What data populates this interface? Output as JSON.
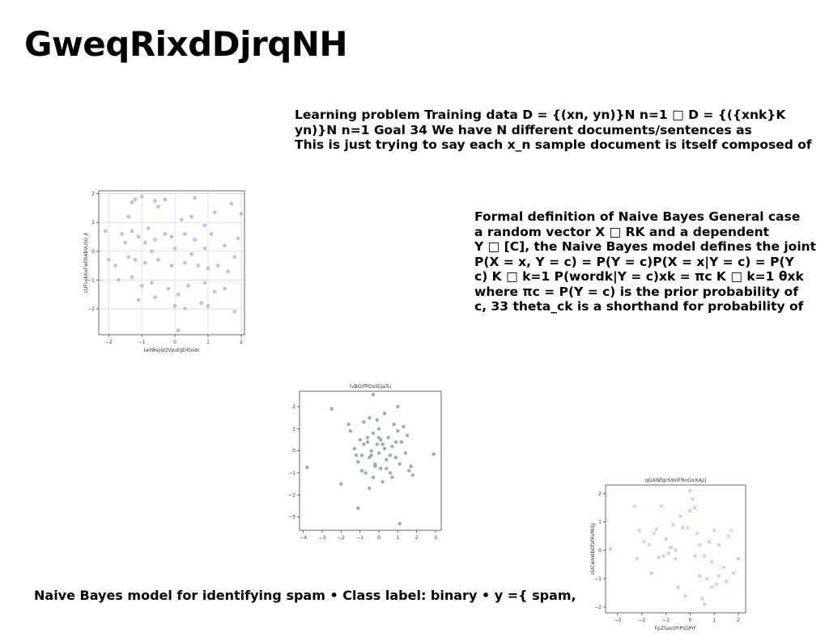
{
  "slide": {
    "title": "GweqRixdDjrqNH",
    "paragraph1": [
      "Learning problem Training data D = {(xn, yn)}N n=1 □ D = {({xnk}K",
      "yn)}N n=1 Goal 34 We have N different documents/sentences as",
      "This is just trying to say each x_n sample document is itself composed of"
    ],
    "paragraph2": [
      "Formal definition of Naive Bayes General case",
      "a random vector X □ RK and a dependent",
      "Y □ [C], the Naive Bayes model defines the joint",
      "P(X = x, Y = c) = P(Y = c)P(X = x|Y = c) = P(Y",
      "c) K □ k=1 P(wordk|Y = c)xk = πc K □ k=1 θxk",
      "where πc = P(Y = c) is the prior probability of",
      "c, 33 theta_ck is a shorthand for probability of"
    ],
    "paragraph3": "Naive Bayes model for identifying spam • Class label: binary • y ={ spam,"
  },
  "chart_data": [
    {
      "type": "scatter",
      "title": "",
      "xlabel": "LehBsjiqQVputgEXtodo",
      "ylabel": "cUFLekKxFwhhAbVuSG X",
      "xlim": [
        -2.3,
        2.1
      ],
      "ylim": [
        -2.9,
        2.1
      ],
      "xticks": [
        -2,
        -1,
        0,
        1,
        2
      ],
      "yticks": [
        -2,
        -1,
        0,
        1,
        2
      ],
      "grid": true,
      "marker": "circle",
      "color": "#b3b3ff",
      "points": [
        [
          -1.2,
          1.8
        ],
        [
          -1.0,
          1.9
        ],
        [
          -0.6,
          1.75
        ],
        [
          -0.3,
          1.8
        ],
        [
          0.6,
          1.85
        ],
        [
          1.7,
          1.65
        ],
        [
          -1.3,
          1.7
        ],
        [
          -0.5,
          1.55
        ],
        [
          1.2,
          1.35
        ],
        [
          -2.1,
          0.7
        ],
        [
          -1.6,
          0.6
        ],
        [
          -1.3,
          0.7
        ],
        [
          -0.8,
          0.8
        ],
        [
          -0.3,
          0.6
        ],
        [
          0.2,
          1.1
        ],
        [
          0.5,
          1.2
        ],
        [
          0.9,
          0.9
        ],
        [
          1.1,
          0.6
        ],
        [
          2.0,
          1.3
        ],
        [
          -1.5,
          0.3
        ],
        [
          -1.1,
          0.5
        ],
        [
          -0.9,
          0.3
        ],
        [
          -0.6,
          0.4
        ],
        [
          -0.1,
          0.5
        ],
        [
          0.3,
          0.6
        ],
        [
          0.6,
          0.4
        ],
        [
          1.5,
          0.2
        ],
        [
          1.9,
          0.45
        ],
        [
          -2.0,
          -0.3
        ],
        [
          -1.8,
          -0.5
        ],
        [
          -1.4,
          -0.2
        ],
        [
          -1.2,
          -0.3
        ],
        [
          -0.9,
          -0.4
        ],
        [
          -0.5,
          -0.3
        ],
        [
          -0.1,
          -0.5
        ],
        [
          0.3,
          -0.4
        ],
        [
          0.7,
          -0.5
        ],
        [
          1.0,
          -0.6
        ],
        [
          1.3,
          -0.5
        ],
        [
          1.6,
          -0.7
        ],
        [
          -1.7,
          -1.0
        ],
        [
          -1.3,
          -0.9
        ],
        [
          -1.0,
          -1.2
        ],
        [
          -0.7,
          -1.1
        ],
        [
          -0.2,
          -1.3
        ],
        [
          0.1,
          -1.5
        ],
        [
          0.4,
          -1.2
        ],
        [
          0.9,
          -1.1
        ],
        [
          1.2,
          -1.4
        ],
        [
          1.5,
          -1.3
        ],
        [
          -1.1,
          -1.7
        ],
        [
          -0.6,
          -1.6
        ],
        [
          0.0,
          -1.9
        ],
        [
          0.3,
          -2.0
        ],
        [
          0.8,
          -1.8
        ],
        [
          1.0,
          -1.9
        ],
        [
          1.8,
          -2.1
        ],
        [
          0.1,
          -2.75
        ],
        [
          -0.7,
          0.0
        ],
        [
          0.0,
          0.1
        ],
        [
          0.5,
          -0.1
        ],
        [
          -1.4,
          1.2
        ],
        [
          0.9,
          0.1
        ],
        [
          1.8,
          -0.2
        ]
      ]
    },
    {
      "type": "scatter",
      "title": "lvBGIfPDstEJaTu",
      "xlabel": "",
      "ylabel": "",
      "xlim": [
        -4.2,
        3.3
      ],
      "ylim": [
        -3.6,
        2.7
      ],
      "xticks": [
        -4,
        -3,
        -2,
        -1,
        0,
        1,
        2,
        3
      ],
      "yticks": [
        -3,
        -2,
        -1,
        0,
        1,
        2
      ],
      "grid": false,
      "marker": "circle",
      "color": "#7fa696",
      "points": [
        [
          -3.8,
          -0.75
        ],
        [
          -2.5,
          1.9
        ],
        [
          -2.0,
          -1.5
        ],
        [
          -1.6,
          1.2
        ],
        [
          -1.5,
          0.9
        ],
        [
          -1.3,
          0.1
        ],
        [
          -1.1,
          -0.5
        ],
        [
          -1.0,
          0.5
        ],
        [
          -0.9,
          -0.2
        ],
        [
          -0.8,
          1.3
        ],
        [
          -0.8,
          0.3
        ],
        [
          -0.7,
          -1.0
        ],
        [
          -0.6,
          0.6
        ],
        [
          -0.5,
          -0.3
        ],
        [
          -0.5,
          1.5
        ],
        [
          -0.4,
          0.0
        ],
        [
          -0.3,
          -1.2
        ],
        [
          -0.3,
          0.8
        ],
        [
          -0.2,
          -0.6
        ],
        [
          -0.1,
          0.3
        ],
        [
          0.0,
          -0.1
        ],
        [
          0.0,
          1.0
        ],
        [
          0.1,
          -0.8
        ],
        [
          0.1,
          0.5
        ],
        [
          0.2,
          -1.4
        ],
        [
          0.3,
          0.1
        ],
        [
          0.3,
          1.7
        ],
        [
          0.4,
          -0.4
        ],
        [
          0.5,
          0.6
        ],
        [
          0.6,
          -1.0
        ],
        [
          0.7,
          0.2
        ],
        [
          0.8,
          1.2
        ],
        [
          0.9,
          -0.3
        ],
        [
          1.0,
          0.9
        ],
        [
          1.1,
          -0.6
        ],
        [
          1.2,
          0.4
        ],
        [
          1.3,
          1.1
        ],
        [
          1.4,
          -0.1
        ],
        [
          1.6,
          -0.9
        ],
        [
          1.7,
          -0.7
        ],
        [
          1.8,
          -1.1
        ],
        [
          -0.5,
          -1.7
        ],
        [
          -1.1,
          -2.6
        ],
        [
          1.1,
          -3.3
        ],
        [
          2.9,
          -0.15
        ],
        [
          -0.3,
          2.55
        ],
        [
          1.0,
          2.0
        ],
        [
          -0.2,
          -0.7
        ],
        [
          0.4,
          -0.8
        ],
        [
          -0.6,
          0.4
        ],
        [
          0.2,
          0.3
        ],
        [
          0.6,
          -0.2
        ],
        [
          -1.2,
          -0.2
        ],
        [
          0.9,
          0.4
        ],
        [
          -0.1,
          1.4
        ],
        [
          -0.9,
          -0.9
        ],
        [
          1.5,
          0.7
        ],
        [
          -0.4,
          -0.2
        ],
        [
          0.7,
          -1.2
        ],
        [
          0.0,
          0.6
        ]
      ]
    },
    {
      "type": "scatter",
      "title": "qGXNfqrSYolFRoGxXAzj",
      "xlabel": "FpZSavzFrPsGPrF",
      "ylabel": "nUCwmkbOfatRvMdg",
      "xlim": [
        -3.5,
        2.3
      ],
      "ylim": [
        -2.2,
        2.3
      ],
      "xticks": [
        -3,
        -2,
        -1,
        0,
        1,
        2
      ],
      "yticks": [
        -2,
        -1,
        0,
        1,
        2
      ],
      "grid": false,
      "marker": "x",
      "color": "#b3b3ff",
      "points": [
        [
          -3.3,
          0.05
        ],
        [
          -2.3,
          1.55
        ],
        [
          -2.2,
          -0.3
        ],
        [
          -2.1,
          0.7
        ],
        [
          -1.9,
          0.3
        ],
        [
          -1.7,
          0.2
        ],
        [
          -1.6,
          -0.8
        ],
        [
          -1.5,
          0.6
        ],
        [
          -1.4,
          0.75
        ],
        [
          -1.2,
          1.55
        ],
        [
          -1.1,
          -0.2
        ],
        [
          -1.0,
          0.4
        ],
        [
          -0.9,
          -0.1
        ],
        [
          -0.7,
          0.9
        ],
        [
          -0.6,
          0.0
        ],
        [
          -0.5,
          -1.3
        ],
        [
          -0.4,
          1.2
        ],
        [
          -0.3,
          0.8
        ],
        [
          -0.2,
          -1.6
        ],
        [
          0.0,
          2.1
        ],
        [
          0.0,
          1.4
        ],
        [
          0.1,
          1.8
        ],
        [
          0.2,
          1.5
        ],
        [
          0.3,
          0.6
        ],
        [
          0.4,
          -0.9
        ],
        [
          0.5,
          -1.7
        ],
        [
          0.6,
          -0.2
        ],
        [
          0.7,
          -1.0
        ],
        [
          0.8,
          0.3
        ],
        [
          0.9,
          -0.4
        ],
        [
          1.0,
          0.7
        ],
        [
          1.1,
          -1.2
        ],
        [
          1.2,
          0.2
        ],
        [
          1.4,
          -0.6
        ],
        [
          1.5,
          -1.1
        ],
        [
          1.6,
          0.5
        ],
        [
          1.8,
          -0.8
        ],
        [
          2.0,
          -0.3
        ],
        [
          -1.3,
          -0.25
        ],
        [
          -0.8,
          0.1
        ],
        [
          0.6,
          -1.9
        ],
        [
          0.2,
          -0.2
        ],
        [
          1.7,
          0.7
        ],
        [
          -0.1,
          0.8
        ],
        [
          0.4,
          0.2
        ],
        [
          1.2,
          -0.9
        ],
        [
          -0.6,
          -0.3
        ],
        [
          0.9,
          -1.3
        ]
      ]
    }
  ]
}
